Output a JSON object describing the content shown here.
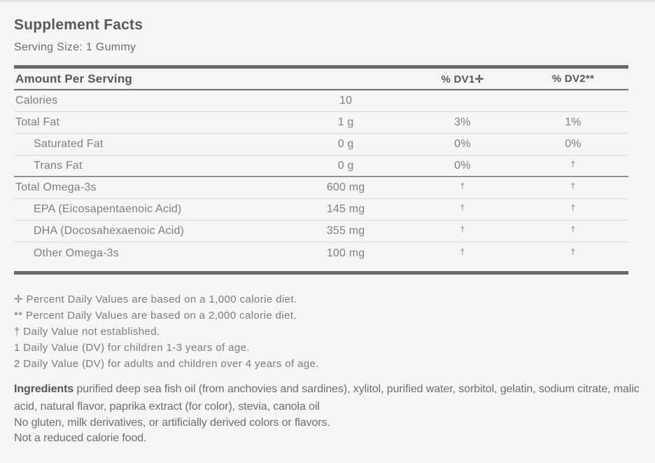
{
  "label": {
    "title": "Supplement Facts",
    "serving_size": "Serving Size: 1 Gummy"
  },
  "table": {
    "headers": {
      "amount_per_serving": "Amount Per Serving",
      "dv1": "% DV1✛",
      "dv2": "% DV2**"
    },
    "rows": [
      {
        "name": "Calories",
        "amount": "10",
        "dv1": "",
        "dv2": ""
      },
      {
        "name": "Total Fat",
        "amount": "1 g",
        "dv1": "3%",
        "dv2": "1%"
      },
      {
        "name": "Saturated Fat",
        "amount": "0 g",
        "dv1": "0%",
        "dv2": "0%"
      },
      {
        "name": "Trans Fat",
        "amount": "0 g",
        "dv1": "0%",
        "dv2": "†"
      },
      {
        "name": "Total Omega-3s",
        "amount": "600 mg",
        "dv1": "†",
        "dv2": "†"
      },
      {
        "name": "EPA (Eicosapentaenoic Acid)",
        "amount": "145 mg",
        "dv1": "†",
        "dv2": "†"
      },
      {
        "name": "DHA (Docosahexaenoic Acid)",
        "amount": "355 mg",
        "dv1": "†",
        "dv2": "†"
      },
      {
        "name": "Other Omega-3s",
        "amount": "100 mg",
        "dv1": "†",
        "dv2": "†"
      }
    ]
  },
  "footnotes": [
    "✛ Percent Daily Values are based on a 1,000 calorie diet.",
    "** Percent Daily Values are based on a 2,000 calorie diet.",
    "† Daily Value not established.",
    "1 Daily Value (DV) for children 1-3 years of age.",
    "2 Daily Value (DV) for adults and children over 4 years of age."
  ],
  "ingredients": {
    "label": "Ingredients",
    "text": " purified deep sea fish oil (from anchovies and sardines), xylitol, purified water, sorbitol, gelatin, sodium citrate, malic acid, natural flavor, paprika extract (for color), stevia, canola oil"
  },
  "notes": [
    "No gluten, milk derivatives, or artificially derived colors or flavors.",
    "Not a reduced calorie food."
  ],
  "colors": {
    "background": "#f6f6f7",
    "heading_text": "#5d5651",
    "body_text": "#817e85",
    "muted_text": "#7d7a81",
    "bar": "#69696b",
    "row_divider": "#dadbdc",
    "group_divider": "#909093"
  }
}
